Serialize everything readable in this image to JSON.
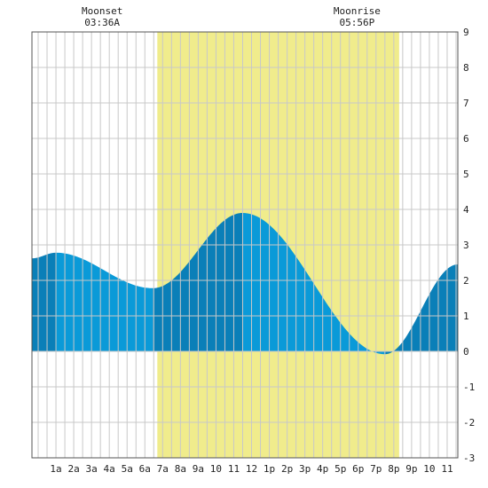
{
  "moon": {
    "moonset": {
      "label": "Moonset",
      "time": "03:36A",
      "hour": 3.6
    },
    "moonrise": {
      "label": "Moonrise",
      "time": "05:56P",
      "hour": 17.93
    }
  },
  "colors": {
    "daylight": "#f0ec8c",
    "tide_light": "#0a9ad8",
    "tide_dark": "#0a7fb8",
    "grid": "#c8c8c8",
    "frame": "#555555"
  },
  "chart_data": {
    "type": "area",
    "title": "",
    "xlabel": "",
    "ylabel": "",
    "xlim": [
      -0.35,
      23.6
    ],
    "ylim": [
      -3,
      9
    ],
    "grid": true,
    "y_ticks": [
      -3,
      -2,
      -1,
      0,
      1,
      2,
      3,
      4,
      5,
      6,
      7,
      8,
      9
    ],
    "x_tick_hours": [
      1,
      2,
      3,
      4,
      5,
      6,
      7,
      8,
      9,
      10,
      11,
      12,
      13,
      14,
      15,
      16,
      17,
      18,
      19,
      20,
      21,
      22,
      23
    ],
    "x_tick_labels": [
      "1a",
      "2a",
      "3a",
      "4a",
      "5a",
      "6a",
      "7a",
      "8a",
      "9a",
      "10",
      "11",
      "12",
      "1p",
      "2p",
      "3p",
      "4p",
      "5p",
      "6p",
      "7p",
      "8p",
      "9p",
      "10",
      "11"
    ],
    "daylight": {
      "start_hour": 6.7,
      "end_hour": 20.3
    },
    "extrema": [
      {
        "hour": 1.0,
        "height": 2.78,
        "kind": "high"
      },
      {
        "hour": 6.45,
        "height": 1.78,
        "kind": "low"
      },
      {
        "hour": 11.5,
        "height": 3.9,
        "kind": "high"
      },
      {
        "hour": 19.5,
        "height": -0.08,
        "kind": "low"
      }
    ],
    "start": {
      "hour": -0.35,
      "height": 2.62
    },
    "end": {
      "hour": 23.6,
      "height": 2.45
    }
  }
}
